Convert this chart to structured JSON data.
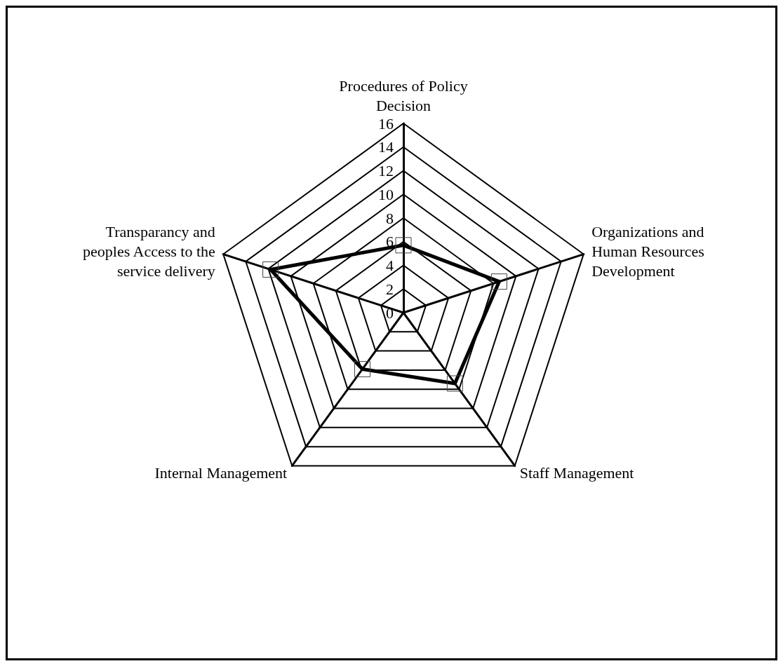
{
  "chart_data": {
    "type": "radar",
    "categories": [
      "Procedures of Policy Decision",
      "Organizations and Human Resources Development",
      "Staff Management",
      "Internal Management",
      "Transparancy and peoples Access to the service delivery"
    ],
    "series": [
      {
        "color": "#000000",
        "values": [
          5.7,
          8.5,
          7.4,
          5.9,
          11.8
        ]
      }
    ],
    "ylim": [
      0,
      16
    ],
    "yticks": [
      0,
      2,
      4,
      6,
      8,
      10,
      12,
      14,
      16
    ],
    "marker": "square",
    "line_style": "solid",
    "grid": true
  }
}
